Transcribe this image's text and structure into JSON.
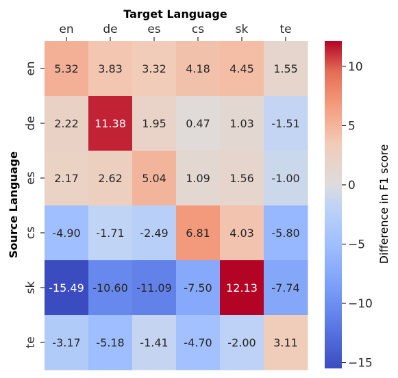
{
  "chart_data": {
    "type": "heatmap",
    "xlabel": "Target Language",
    "ylabel": "Source Language",
    "x_categories": [
      "en",
      "de",
      "es",
      "cs",
      "sk",
      "te"
    ],
    "y_categories": [
      "en",
      "de",
      "es",
      "cs",
      "sk",
      "te"
    ],
    "values": [
      [
        5.32,
        3.83,
        3.32,
        4.18,
        4.45,
        1.55
      ],
      [
        2.22,
        11.38,
        1.95,
        0.47,
        1.03,
        -1.51
      ],
      [
        2.17,
        2.62,
        5.04,
        1.09,
        1.56,
        -1.0
      ],
      [
        -4.9,
        -1.71,
        -2.49,
        6.81,
        4.03,
        -5.8
      ],
      [
        -15.49,
        -10.6,
        -11.09,
        -7.5,
        12.13,
        -7.74
      ],
      [
        -3.17,
        -5.18,
        -1.41,
        -4.7,
        -2.0,
        3.11
      ]
    ],
    "labels": [
      [
        "5.32",
        "3.83",
        "3.32",
        "4.18",
        "4.45",
        "1.55"
      ],
      [
        "2.22",
        "11.38",
        "1.95",
        "0.47",
        "1.03",
        "-1.51"
      ],
      [
        "2.17",
        "2.62",
        "5.04",
        "1.09",
        "1.56",
        "-1.00"
      ],
      [
        "-4.90",
        "-1.71",
        "-2.49",
        "6.81",
        "4.03",
        "-5.80"
      ],
      [
        "-15.49",
        "-10.60",
        "-11.09",
        "-7.50",
        "12.13",
        "-7.74"
      ],
      [
        "-3.17",
        "-5.18",
        "-1.41",
        "-4.70",
        "-2.00",
        "3.11"
      ]
    ],
    "colormap": "coolwarm",
    "vmin": -15.49,
    "vmax": 12.13,
    "colorbar": {
      "label": "Difference in F1 score",
      "ticks": [
        10,
        5,
        0,
        -5,
        -10,
        -15
      ],
      "tick_labels": [
        "10",
        "5",
        "0",
        "−5",
        "−10",
        "−15"
      ]
    },
    "x_axis_position": "top"
  }
}
